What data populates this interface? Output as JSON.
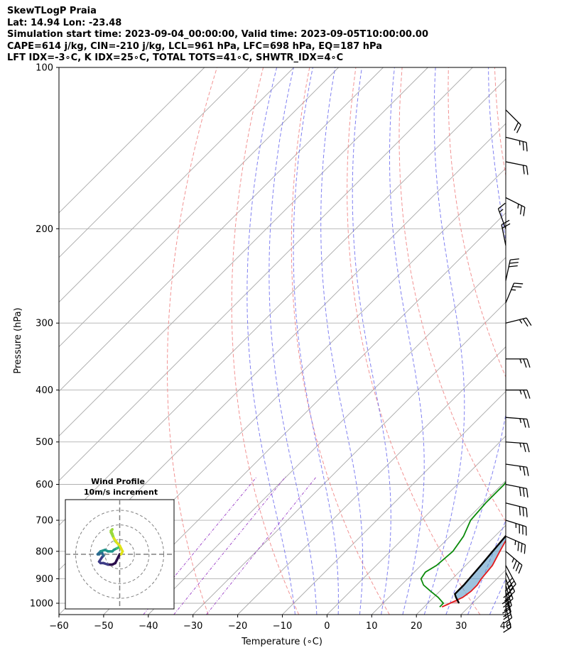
{
  "header": {
    "line1": "SkewTLogP Praia",
    "line2": "Lat: 14.94   Lon: -23.48",
    "line3": "Simulation start time: 2023-09-04_00:00:00, Valid time: 2023-09-05T10:00:00.00",
    "line4": "CAPE=614 j/kg, CIN=-210 j/kg, LCL=961 hPa, LFC=698 hPa, EQ=187 hPa",
    "line5": "LFT IDX=-3∘C, K IDX=25∘C, TOTAL TOTS=41∘C, SHWTR_IDX=4∘C"
  },
  "chart_data": {
    "type": "line",
    "title": "SkewTLogP Praia",
    "xlabel": "Temperature (∘C)",
    "ylabel": "Pressure (hPa)",
    "xlim": [
      -60,
      40
    ],
    "ylim": [
      1050,
      100
    ],
    "y_scale": "log",
    "x_ticks": [
      -60,
      -50,
      -40,
      -30,
      -20,
      -10,
      0,
      10,
      20,
      30,
      40
    ],
    "y_ticks": [
      1000,
      900,
      800,
      700,
      600,
      500,
      400,
      300,
      200,
      100
    ],
    "grid": true,
    "colors": {
      "temperature": "#e31a1c",
      "dewpoint": "#0a8a0a",
      "parcel": "#000000",
      "cape_fill": "#e8777a",
      "cin_fill": "#5b9bc8",
      "dry_adiabat": "#f08080",
      "moist_adiabat": "#6b6bef",
      "mixing_ratio": "#9b3fc6"
    },
    "series": [
      {
        "key": "temperature",
        "points": [
          [
            1016,
            24.0
          ],
          [
            1000,
            25.0
          ],
          [
            975,
            26.5
          ],
          [
            950,
            27.0
          ],
          [
            925,
            27.0
          ],
          [
            900,
            26.5
          ],
          [
            850,
            26.0
          ],
          [
            800,
            24.5
          ],
          [
            750,
            23.0
          ],
          [
            700,
            21.0
          ],
          [
            650,
            18.0
          ],
          [
            600,
            15.5
          ],
          [
            550,
            14.5
          ],
          [
            500,
            15.0
          ],
          [
            450,
            14.5
          ],
          [
            400,
            12.0
          ],
          [
            350,
            9.5
          ],
          [
            325,
            8.5
          ],
          [
            300,
            6.0
          ],
          [
            275,
            3.0
          ],
          [
            250,
            0.0
          ],
          [
            225,
            -2.0
          ],
          [
            200,
            -4.0
          ],
          [
            185,
            -5.0
          ],
          [
            175,
            -5.0
          ],
          [
            165,
            -4.0
          ],
          [
            150,
            -4.5
          ],
          [
            140,
            -5.0
          ],
          [
            130,
            -6.0
          ],
          [
            120,
            -8.0
          ],
          [
            110,
            -8.5
          ],
          [
            100,
            -7.5
          ]
        ]
      },
      {
        "key": "dewpoint",
        "points": [
          [
            1016,
            23.5
          ],
          [
            1000,
            23.5
          ],
          [
            975,
            21.0
          ],
          [
            950,
            18.0
          ],
          [
            925,
            15.0
          ],
          [
            900,
            13.0
          ],
          [
            875,
            12.5
          ],
          [
            850,
            13.5
          ],
          [
            800,
            14.0
          ],
          [
            750,
            13.0
          ],
          [
            700,
            11.0
          ],
          [
            650,
            10.5
          ],
          [
            600,
            10.5
          ],
          [
            550,
            9.0
          ],
          [
            500,
            3.0
          ],
          [
            475,
            -1.0
          ],
          [
            450,
            -1.0
          ],
          [
            425,
            -1.5
          ],
          [
            400,
            -2.0
          ],
          [
            375,
            0.0
          ],
          [
            350,
            3.0
          ],
          [
            325,
            5.0
          ],
          [
            300,
            5.0
          ],
          [
            275,
            3.0
          ],
          [
            250,
            0.0
          ],
          [
            225,
            -6.0
          ],
          [
            210,
            -8.0
          ],
          [
            200,
            -8.0
          ],
          [
            185,
            -10.0
          ],
          [
            175,
            -14.0
          ],
          [
            165,
            -18.0
          ],
          [
            155,
            -18.0
          ],
          [
            145,
            -17.0
          ],
          [
            135,
            -16.0
          ],
          [
            125,
            -14.0
          ],
          [
            115,
            -12.0
          ],
          [
            105,
            -9.0
          ],
          [
            100,
            -8.0
          ]
        ]
      },
      {
        "key": "parcel",
        "points": [
          [
            1000,
            27.0
          ],
          [
            975,
            25.0
          ],
          [
            961,
            24.0
          ],
          [
            925,
            24.0
          ],
          [
            900,
            23.8
          ],
          [
            850,
            23.4
          ],
          [
            800,
            22.9
          ],
          [
            750,
            22.4
          ],
          [
            700,
            21.8
          ],
          [
            650,
            21.1
          ],
          [
            600,
            20.2
          ],
          [
            550,
            19.2
          ],
          [
            500,
            18.0
          ],
          [
            450,
            16.5
          ],
          [
            400,
            14.6
          ],
          [
            350,
            12.1
          ],
          [
            300,
            8.8
          ],
          [
            250,
            4.4
          ],
          [
            200,
            -3.0
          ],
          [
            187,
            -5.0
          ],
          [
            150,
            -12.3
          ],
          [
            125,
            -18.2
          ],
          [
            100,
            -24.3
          ]
        ]
      }
    ]
  },
  "barbs": {
    "color": "#000000",
    "items": [
      {
        "p": 1016,
        "u": -2,
        "v": 8
      },
      {
        "p": 975,
        "u": -3,
        "v": 10
      },
      {
        "p": 950,
        "u": -3,
        "v": 12
      },
      {
        "p": 925,
        "u": -4,
        "v": 14
      },
      {
        "p": 900,
        "u": -5,
        "v": 14
      },
      {
        "p": 875,
        "u": -6,
        "v": 13
      },
      {
        "p": 850,
        "u": -7,
        "v": 13
      },
      {
        "p": 800,
        "u": -13,
        "v": 11
      },
      {
        "p": 750,
        "u": -16,
        "v": 7
      },
      {
        "p": 700,
        "u": -16,
        "v": 5
      },
      {
        "p": 650,
        "u": -16,
        "v": 4
      },
      {
        "p": 600,
        "u": -15,
        "v": 3
      },
      {
        "p": 550,
        "u": -14,
        "v": 2
      },
      {
        "p": 500,
        "u": -14,
        "v": 1
      },
      {
        "p": 450,
        "u": -13,
        "v": 1
      },
      {
        "p": 400,
        "u": -13,
        "v": 0
      },
      {
        "p": 350,
        "u": -13,
        "v": 0
      },
      {
        "p": 300,
        "u": -12,
        "v": -3
      },
      {
        "p": 275,
        "u": -5,
        "v": -12
      },
      {
        "p": 250,
        "u": -3,
        "v": -14
      },
      {
        "p": 215,
        "u": 2,
        "v": -10
      },
      {
        "p": 200,
        "u": 3,
        "v": -8
      },
      {
        "p": 175,
        "u": -12,
        "v": 6
      },
      {
        "p": 150,
        "u": -10,
        "v": 2
      },
      {
        "p": 135,
        "u": -12,
        "v": 3
      },
      {
        "p": 120,
        "u": -8,
        "v": 8
      }
    ]
  },
  "hodograph": {
    "title": "Wind Profile",
    "subtitle": "10m/s increment",
    "rings": [
      10,
      20,
      30
    ],
    "max": 37,
    "colors": [
      "#2b0d4c",
      "#3d3b86",
      "#2a6a8f",
      "#1f948a",
      "#3ac071",
      "#9bd93c",
      "#dfe318"
    ],
    "points": [
      [
        0,
        0
      ],
      [
        -1,
        -2
      ],
      [
        -2,
        -4
      ],
      [
        -3,
        -6
      ],
      [
        -5,
        -7
      ],
      [
        -8,
        -7
      ],
      [
        -11,
        -6
      ],
      [
        -13,
        -6
      ],
      [
        -14,
        -5
      ],
      [
        -12,
        -2
      ],
      [
        -11,
        -1
      ],
      [
        -12,
        1
      ],
      [
        -13,
        2
      ],
      [
        -14,
        0
      ],
      [
        -15,
        0
      ],
      [
        -13,
        2
      ],
      [
        -10,
        3
      ],
      [
        -8,
        2
      ],
      [
        -5,
        2
      ],
      [
        -4,
        3
      ],
      [
        -2,
        4
      ],
      [
        0,
        5
      ],
      [
        -1,
        7
      ],
      [
        -3,
        9
      ],
      [
        -4,
        11
      ],
      [
        -5,
        13
      ],
      [
        -6,
        15
      ],
      [
        -5,
        17
      ],
      [
        -6,
        16
      ],
      [
        -5,
        14
      ],
      [
        -4,
        11
      ],
      [
        -2,
        8
      ],
      [
        0,
        6
      ],
      [
        1,
        4
      ],
      [
        2,
        2
      ],
      [
        1,
        0
      ]
    ]
  }
}
